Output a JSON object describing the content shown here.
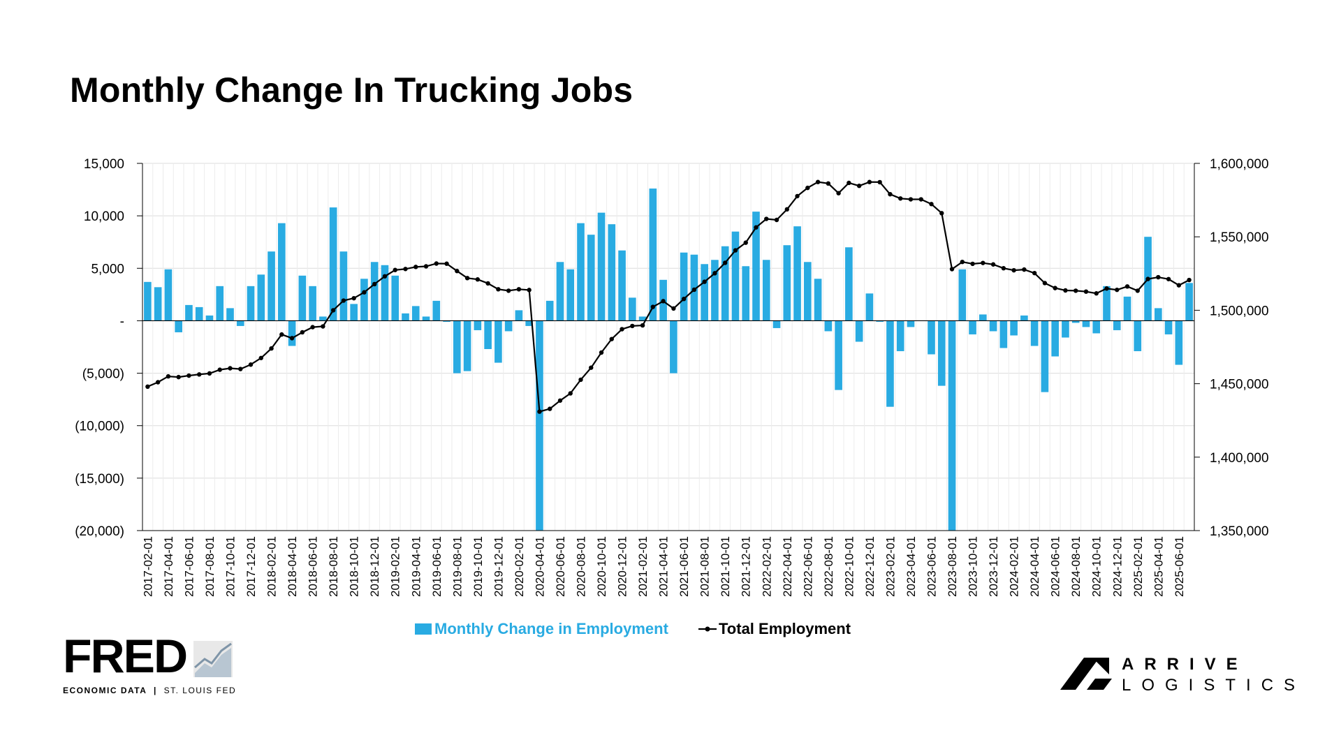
{
  "title": "Monthly Change In Trucking Jobs",
  "colors": {
    "bar": "#29abe2",
    "line": "#000000",
    "grid": "#dcdcdc"
  },
  "chart_data": {
    "type": "bar",
    "title": "Monthly Change In Trucking Jobs",
    "grid": true,
    "legend_placement": "bottom-center",
    "y_left": {
      "ylim": [
        -20000,
        15000
      ],
      "ticks": [
        15000,
        10000,
        5000,
        0,
        -5000,
        -10000,
        -15000,
        -20000
      ],
      "tick_labels": [
        "15,000",
        "10,000",
        "5,000",
        "-",
        "(5,000)",
        "(10,000)",
        "(15,000)",
        "(20,000)"
      ]
    },
    "y_right": {
      "ylim": [
        1350000,
        1600000
      ],
      "ticks": [
        1600000,
        1550000,
        1500000,
        1450000,
        1400000,
        1350000
      ],
      "tick_labels": [
        "1,600,000",
        "1,550,000",
        "1,500,000",
        "1,450,000",
        "1,400,000",
        "1,350,000"
      ]
    },
    "x_tick_labels": [
      "2017-02-01",
      "2017-04-01",
      "2017-06-01",
      "2017-08-01",
      "2017-10-01",
      "2017-12-01",
      "2018-02-01",
      "2018-04-01",
      "2018-06-01",
      "2018-08-01",
      "2018-10-01",
      "2018-12-01",
      "2019-02-01",
      "2019-04-01",
      "2019-06-01",
      "2019-08-01",
      "2019-10-01",
      "2019-12-01",
      "2020-02-01",
      "2020-04-01",
      "2020-06-01",
      "2020-08-01",
      "2020-10-01",
      "2020-12-01",
      "2021-02-01",
      "2021-04-01",
      "2021-06-01",
      "2021-08-01",
      "2021-10-01",
      "2021-12-01",
      "2022-02-01",
      "2022-04-01",
      "2022-06-01",
      "2022-08-01",
      "2022-10-01",
      "2022-12-01",
      "2023-02-01",
      "2023-04-01",
      "2023-06-01",
      "2023-08-01",
      "2023-10-01",
      "2023-12-01",
      "2024-02-01",
      "2024-04-01",
      "2024-06-01",
      "2024-08-01",
      "2024-10-01",
      "2024-12-01",
      "2025-02-01",
      "2025-04-01",
      "2025-06-01"
    ],
    "x_start": "2017-02",
    "series": [
      {
        "name": "Monthly Change in Employment",
        "type": "bar",
        "axis": "left",
        "values": [
          3700,
          3200,
          4900,
          -1100,
          1500,
          1300,
          500,
          3300,
          1200,
          -500,
          3300,
          4400,
          6600,
          9300,
          -2400,
          4300,
          3300,
          400,
          10800,
          6600,
          1600,
          4000,
          5600,
          5300,
          4300,
          700,
          1400,
          400,
          1900,
          -100,
          -5000,
          -4800,
          -900,
          -2700,
          -4000,
          -1000,
          1000,
          -500,
          -20000,
          1900,
          5600,
          4900,
          9300,
          8200,
          10300,
          9200,
          6700,
          2200,
          400,
          12600,
          3900,
          -5000,
          6500,
          6300,
          5400,
          5800,
          7100,
          8500,
          5200,
          10400,
          5800,
          -700,
          7200,
          9000,
          5600,
          4000,
          -1000,
          -6600,
          7000,
          -2000,
          2600,
          -100,
          -8200,
          -2900,
          -600,
          0,
          -3200,
          -6200,
          -20000,
          4900,
          -1300,
          600,
          -1000,
          -2600,
          -1400,
          500,
          -2400,
          -6800,
          -3400,
          -1600,
          -200,
          -600,
          -1200,
          3300,
          -900,
          2300,
          -2900,
          8000,
          1200,
          -1300,
          -4200,
          3600
        ],
        "color": "#29abe2"
      },
      {
        "name": "Total Employment",
        "type": "line",
        "axis": "right",
        "values": [
          1448000,
          1451000,
          1455000,
          1454500,
          1455500,
          1456300,
          1457000,
          1459500,
          1460500,
          1460000,
          1463000,
          1467500,
          1474000,
          1483500,
          1481000,
          1485000,
          1488500,
          1489000,
          1500000,
          1506600,
          1508200,
          1512200,
          1517800,
          1523100,
          1527400,
          1528100,
          1529500,
          1529900,
          1531800,
          1531700,
          1526700,
          1521900,
          1521000,
          1518300,
          1514300,
          1513300,
          1514300,
          1513800,
          1431000,
          1432900,
          1438500,
          1443400,
          1452700,
          1460900,
          1471200,
          1480400,
          1487100,
          1489300,
          1489700,
          1502300,
          1506200,
          1501200,
          1507700,
          1514000,
          1519400,
          1525200,
          1532300,
          1540800,
          1546000,
          1556400,
          1562200,
          1561500,
          1568700,
          1577700,
          1583300,
          1587300,
          1586300,
          1579700,
          1586700,
          1584700,
          1587300,
          1587200,
          1579000,
          1576100,
          1575500,
          1575500,
          1572300,
          1566100,
          1528000,
          1532900,
          1531600,
          1532200,
          1531200,
          1528600,
          1527200,
          1527700,
          1525300,
          1518500,
          1515100,
          1513500,
          1513300,
          1512700,
          1511500,
          1514800,
          1513900,
          1516200,
          1513300,
          1521300,
          1522500,
          1521200,
          1517000,
          1520600
        ]
      }
    ]
  },
  "legend": {
    "bar_label": "Monthly Change in Employment",
    "line_label": "Total Employment"
  },
  "fred_logo": {
    "word": "FRED",
    "sub_bold": "ECONOMIC DATA",
    "sub_light": "ST. LOUIS FED"
  },
  "arrive_logo": {
    "line1": "ARRIVE",
    "line2": "LOGISTICS"
  }
}
